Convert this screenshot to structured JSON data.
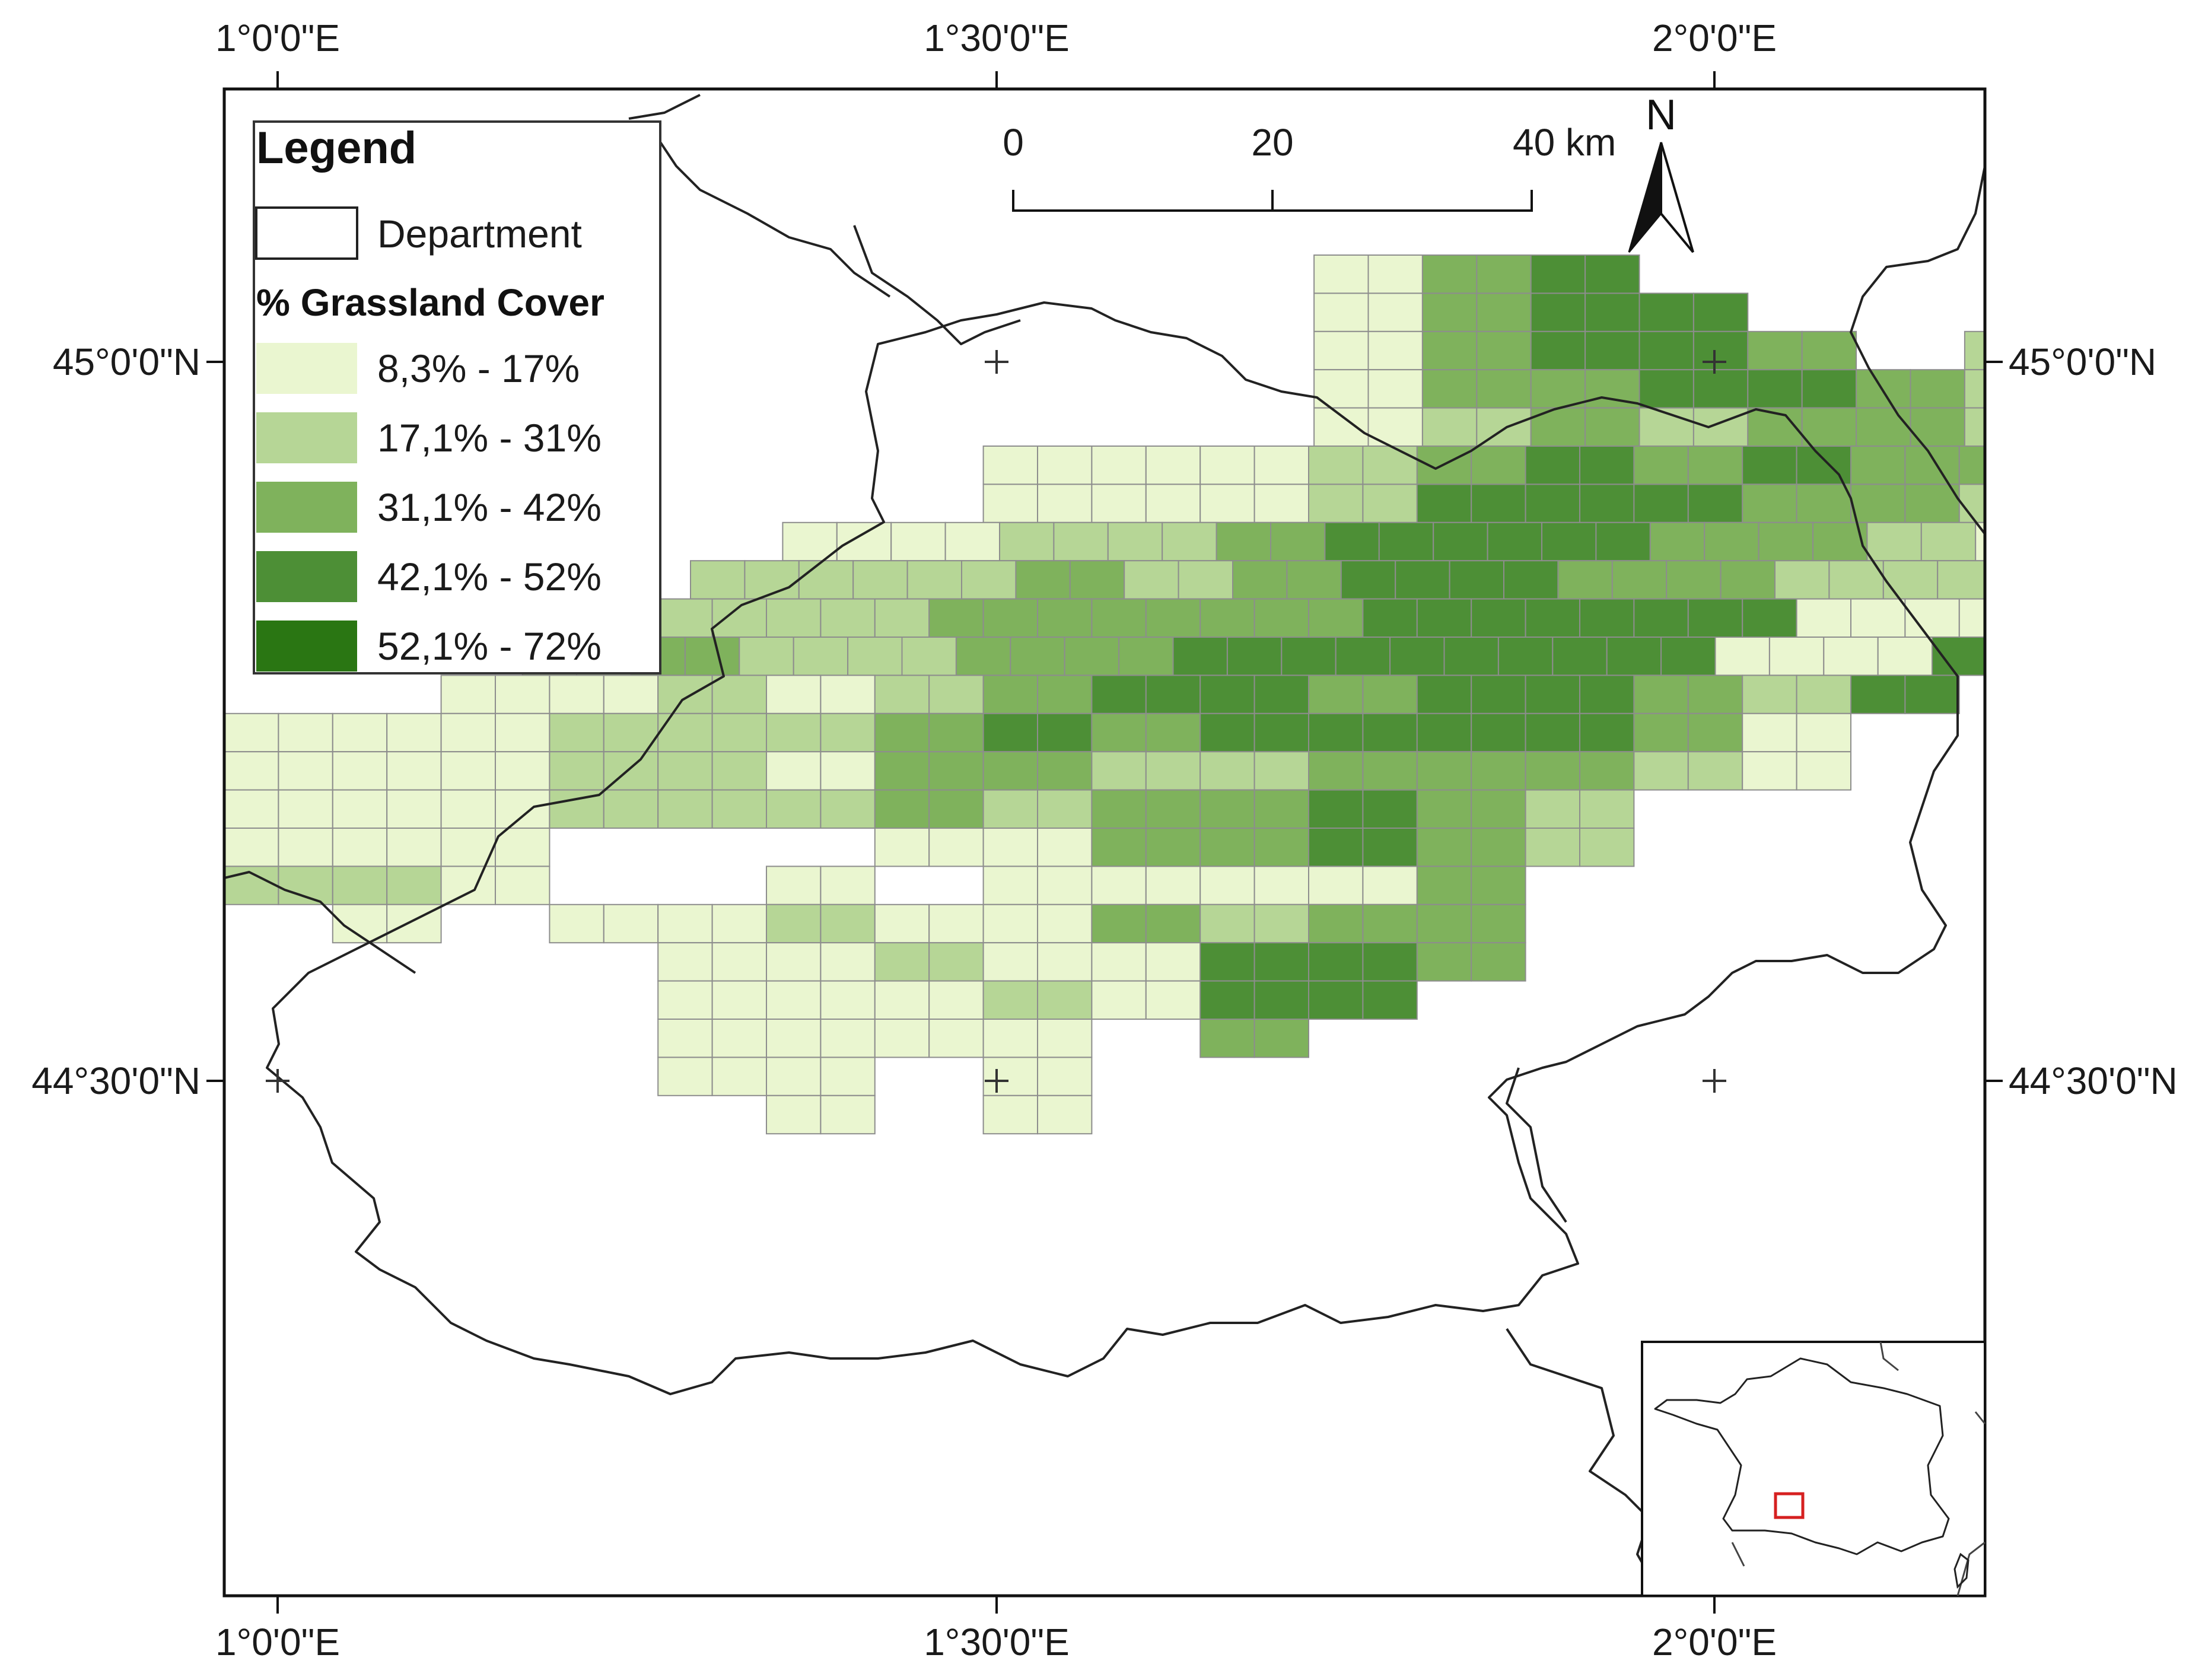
{
  "map": {
    "grid_lon_labels": [
      "1°0'0\"E",
      "1°30'0\"E",
      "2°0'0\"E"
    ],
    "grid_lat_labels": [
      "45°0'0\"N",
      "44°30'0\"N"
    ],
    "class_colors": [
      "#eaf6d0",
      "#b6d696",
      "#7fb25c",
      "#4d8f36",
      "#2a7613"
    ],
    "rows": [
      {
        "x0": 14.1,
        "v": [
          0,
          0,
          0,
          0,
          0,
          0,
          1,
          1,
          3,
          3,
          4,
          4,
          0,
          0,
          0,
          0,
          0,
          0,
          0,
          0,
          0,
          0,
          0,
          0,
          0,
          0,
          0,
          0,
          0,
          0,
          0
        ]
      },
      {
        "x0": 14.1,
        "v": [
          0,
          0,
          0,
          0,
          0,
          0,
          1,
          1,
          3,
          3,
          4,
          4,
          4,
          4,
          0,
          0,
          0,
          0,
          0,
          0,
          0,
          0,
          0,
          0,
          0,
          0,
          0,
          0,
          0,
          0,
          0
        ]
      },
      {
        "x0": 14.1,
        "v": [
          0,
          0,
          0,
          0,
          0,
          0,
          1,
          1,
          3,
          3,
          4,
          4,
          4,
          4,
          3,
          3,
          0,
          0,
          2,
          2,
          0,
          0,
          0,
          0,
          0,
          0,
          0,
          0,
          0,
          0,
          0
        ]
      },
      {
        "x0": 14.1,
        "v": [
          0,
          0,
          0,
          0,
          0,
          0,
          1,
          1,
          3,
          3,
          3,
          3,
          4,
          4,
          4,
          4,
          3,
          3,
          2,
          2,
          1,
          1,
          1,
          1,
          0,
          0,
          0,
          0,
          0,
          0,
          0
        ]
      },
      {
        "x0": 14.1,
        "v": [
          0,
          0,
          0,
          0,
          0,
          0,
          1,
          1,
          2,
          2,
          3,
          3,
          2,
          2,
          3,
          3,
          3,
          3,
          2,
          2,
          2,
          2,
          1,
          1,
          1,
          1,
          0,
          0,
          0,
          0,
          0
        ]
      },
      {
        "x0": 10.0,
        "v": [
          0,
          0,
          0,
          0,
          1,
          1,
          1,
          1,
          1,
          1,
          2,
          2,
          3,
          3,
          4,
          4,
          3,
          3,
          4,
          4,
          3,
          3,
          3,
          3,
          2,
          2,
          2,
          2,
          0,
          0,
          0
        ]
      },
      {
        "x0": 10.0,
        "v": [
          0,
          0,
          0,
          0,
          1,
          1,
          1,
          1,
          1,
          1,
          2,
          2,
          4,
          4,
          4,
          4,
          4,
          4,
          3,
          3,
          3,
          3,
          2,
          2,
          2,
          2,
          2,
          2,
          2,
          2,
          0
        ]
      },
      {
        "x0": 8.3,
        "v": [
          0,
          0,
          1,
          1,
          1,
          1,
          2,
          2,
          2,
          2,
          3,
          3,
          4,
          4,
          4,
          4,
          4,
          4,
          3,
          3,
          3,
          3,
          2,
          2,
          1,
          1,
          2,
          2,
          2,
          2,
          0
        ]
      },
      {
        "x0": 6.6,
        "v": [
          0,
          0,
          2,
          2,
          2,
          2,
          2,
          2,
          3,
          3,
          2,
          2,
          3,
          3,
          4,
          4,
          4,
          4,
          3,
          3,
          3,
          3,
          2,
          2,
          2,
          2,
          1,
          1,
          1,
          1,
          0
        ]
      },
      {
        "x0": 5.0,
        "v": [
          0,
          0,
          2,
          2,
          2,
          2,
          2,
          2,
          3,
          3,
          3,
          3,
          3,
          3,
          3,
          3,
          4,
          4,
          4,
          4,
          4,
          4,
          4,
          4,
          1,
          1,
          1,
          1,
          2,
          2,
          0
        ]
      },
      {
        "x0": 3.5,
        "v": [
          0,
          0,
          2,
          2,
          3,
          3,
          2,
          2,
          2,
          2,
          3,
          3,
          3,
          3,
          4,
          4,
          4,
          4,
          4,
          4,
          4,
          4,
          4,
          4,
          1,
          1,
          1,
          1,
          4,
          4,
          0
        ]
      },
      {
        "x0": 2.0,
        "v": [
          0,
          0,
          1,
          1,
          1,
          1,
          2,
          2,
          1,
          1,
          2,
          2,
          3,
          3,
          4,
          4,
          4,
          4,
          3,
          3,
          4,
          4,
          4,
          4,
          3,
          3,
          2,
          2,
          4,
          4,
          0
        ]
      },
      {
        "x0": 0.0,
        "v": [
          1,
          1,
          1,
          1,
          1,
          1,
          2,
          2,
          2,
          2,
          2,
          2,
          3,
          3,
          4,
          4,
          3,
          3,
          4,
          4,
          4,
          4,
          4,
          4,
          4,
          4,
          3,
          3,
          1,
          1,
          0
        ]
      },
      {
        "x0": 0.0,
        "v": [
          1,
          1,
          1,
          1,
          1,
          1,
          2,
          2,
          2,
          2,
          1,
          1,
          3,
          3,
          3,
          3,
          2,
          2,
          2,
          2,
          3,
          3,
          3,
          3,
          3,
          3,
          2,
          2,
          1,
          1,
          0
        ]
      },
      {
        "x0": 0.0,
        "v": [
          1,
          1,
          1,
          1,
          1,
          1,
          2,
          2,
          2,
          2,
          2,
          2,
          3,
          3,
          2,
          2,
          3,
          3,
          3,
          3,
          4,
          4,
          3,
          3,
          2,
          2,
          0,
          0,
          0,
          0,
          0
        ]
      },
      {
        "x0": 0.0,
        "v": [
          1,
          1,
          1,
          1,
          1,
          1,
          0,
          0,
          0,
          0,
          0,
          0,
          1,
          1,
          1,
          1,
          3,
          3,
          3,
          3,
          4,
          4,
          3,
          3,
          2,
          2,
          0,
          0,
          0,
          0,
          0
        ]
      },
      {
        "x0": 0.0,
        "v": [
          2,
          2,
          2,
          2,
          1,
          1,
          0,
          0,
          0,
          0,
          1,
          1,
          0,
          0,
          1,
          1,
          1,
          1,
          1,
          1,
          1,
          1,
          3,
          3,
          0,
          0,
          0,
          0,
          0,
          0,
          0
        ]
      },
      {
        "x0": 0.0,
        "v": [
          0,
          0,
          1,
          1,
          0,
          0,
          1,
          1,
          1,
          1,
          2,
          2,
          1,
          1,
          1,
          1,
          3,
          3,
          2,
          2,
          3,
          3,
          3,
          3,
          0,
          0,
          0,
          0,
          0,
          0,
          0
        ]
      },
      {
        "x0": 0.0,
        "v": [
          0,
          0,
          0,
          0,
          0,
          0,
          0,
          0,
          1,
          1,
          1,
          1,
          2,
          2,
          1,
          1,
          1,
          1,
          4,
          4,
          4,
          4,
          3,
          3,
          0,
          0,
          0,
          0,
          0,
          0,
          0
        ]
      },
      {
        "x0": 0.0,
        "v": [
          0,
          0,
          0,
          0,
          0,
          0,
          0,
          0,
          1,
          1,
          1,
          1,
          1,
          1,
          2,
          2,
          1,
          1,
          4,
          4,
          4,
          4,
          0,
          0,
          0,
          0,
          0,
          0,
          0,
          0,
          0
        ]
      },
      {
        "x0": 0.0,
        "v": [
          0,
          0,
          0,
          0,
          0,
          0,
          0,
          0,
          1,
          1,
          1,
          1,
          1,
          1,
          1,
          1,
          0,
          0,
          3,
          3,
          0,
          0,
          0,
          0,
          0,
          0,
          0,
          0,
          0,
          0,
          0
        ]
      },
      {
        "x0": 0.0,
        "v": [
          0,
          0,
          0,
          0,
          0,
          0,
          0,
          0,
          1,
          1,
          1,
          1,
          0,
          0,
          1,
          1,
          0,
          0,
          0,
          0,
          0,
          0,
          0,
          0,
          0,
          0,
          0,
          0,
          0,
          0,
          0
        ]
      },
      {
        "x0": 0.0,
        "v": [
          0,
          0,
          0,
          0,
          0,
          0,
          0,
          0,
          0,
          0,
          1,
          1,
          0,
          0,
          1,
          1,
          0,
          0,
          0,
          0,
          0,
          0,
          0,
          0,
          0,
          0,
          0,
          0,
          0,
          0,
          0
        ]
      }
    ]
  },
  "legend": {
    "title": "Legend",
    "department_label": "Department",
    "subtitle": "% Grassland Cover",
    "classes": [
      {
        "label": "8,3% - 17%",
        "color": "#eaf6d0"
      },
      {
        "label": "17,1% - 31%",
        "color": "#b6d696"
      },
      {
        "label": "31,1% - 42%",
        "color": "#7fb25c"
      },
      {
        "label": "42,1% - 52%",
        "color": "#4d8f36"
      },
      {
        "label": "52,1% - 72%",
        "color": "#2a7613"
      }
    ]
  },
  "scale_bar": {
    "labels": [
      "0",
      "20",
      "40 km"
    ]
  },
  "north_arrow": {
    "label": "N"
  },
  "inset": {
    "name": "France overview",
    "highlight_color": "#d62020"
  }
}
